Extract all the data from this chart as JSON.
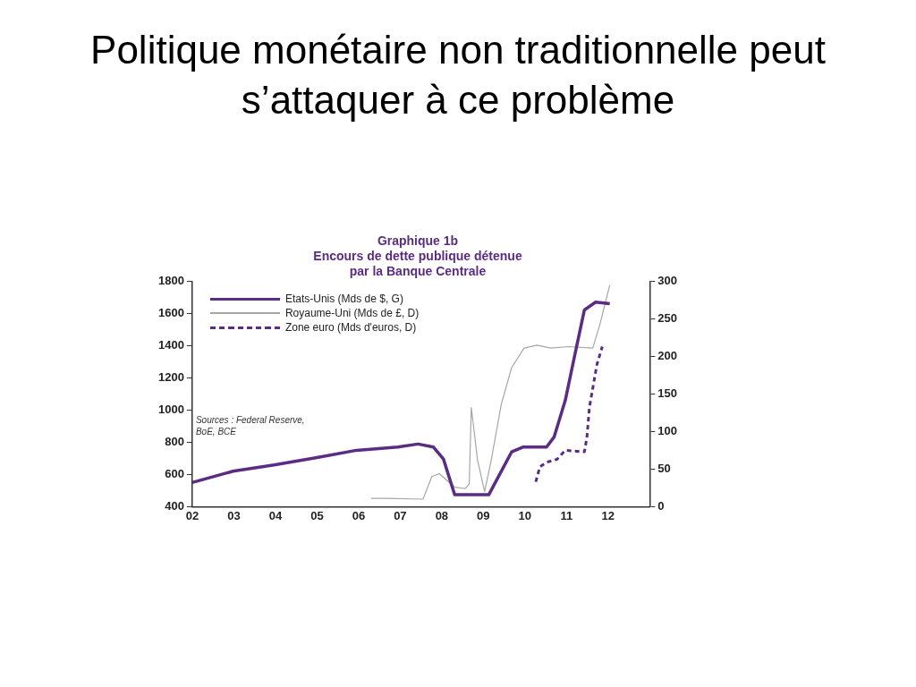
{
  "chart_data": {
    "type": "line",
    "title": "Politique monétaire non traditionnelle peut s’attaquer à ce problème",
    "subtitle": "Graphique 1b\nEncours de dette publique détenue\npar la Banque Centrale",
    "annotations": [
      "Sources : Federal Reserve,\nBoE, BCE"
    ],
    "xlim": [
      2002,
      2013
    ],
    "xticks": [
      {
        "value": 2002,
        "label": "02"
      },
      {
        "value": 2003,
        "label": "03"
      },
      {
        "value": 2004,
        "label": "04"
      },
      {
        "value": 2005,
        "label": "05"
      },
      {
        "value": 2006,
        "label": "06"
      },
      {
        "value": 2007,
        "label": "07"
      },
      {
        "value": 2008,
        "label": "08"
      },
      {
        "value": 2009,
        "label": "09"
      },
      {
        "value": 2010,
        "label": "10"
      },
      {
        "value": 2011,
        "label": "11"
      },
      {
        "value": 2012,
        "label": "12"
      }
    ],
    "ylim": [
      400,
      1800
    ],
    "yticks": [
      400,
      600,
      800,
      1000,
      1200,
      1400,
      1600,
      1800
    ],
    "y2lim": [
      0,
      300
    ],
    "y2ticks": [
      0,
      50,
      100,
      150,
      200,
      250,
      300
    ],
    "grid": false,
    "legend": "top left",
    "marker": "none",
    "series": [
      {
        "name": "Etats-Unis (Mds de $, G)",
        "color": "#5b2c83",
        "line_style": "solid",
        "x": [
          2002,
          2002.98,
          2003.97,
          2004.97,
          2005.95,
          2006.94,
          2007.43,
          2007.8,
          2008.04,
          2008.31,
          2009.13,
          2009.68,
          2009.95,
          2010.52,
          2010.7,
          2010.97,
          2011.22,
          2011.43,
          2011.7,
          2012.04
        ],
        "values": [
          550,
          620,
          659,
          704,
          750,
          770,
          789,
          770,
          696,
          474,
          474,
          740,
          770,
          770,
          832,
          1060,
          1368,
          1622,
          1670,
          1660
        ]
      },
      {
        "name": "Royaume-Uni (Mds de £, D)",
        "color": "#a6a6a6",
        "axis": "y2",
        "line_style": "solid",
        "x": [
          2006.3,
          2006.67,
          2007.55,
          2007.76,
          2007.94,
          2008.31,
          2008.56,
          2008.66,
          2008.71,
          2008.86,
          2009.03,
          2009.19,
          2009.43,
          2009.68,
          2009.98,
          2010.29,
          2010.62,
          2011.04,
          2011.63,
          2011.8,
          2012.04
        ],
        "values": [
          11,
          11,
          10,
          40,
          44,
          26,
          24,
          30,
          132,
          62,
          20,
          62,
          136,
          185,
          211,
          215,
          211,
          213,
          211,
          242,
          295
        ]
      },
      {
        "name": "Zone euro (Mds d'euros, D)",
        "color": "#5b2c83",
        "axis": "y2",
        "line_style": "dashed",
        "x": [
          2010.26,
          2010.36,
          2010.52,
          2010.77,
          2010.97,
          2011.43,
          2011.49,
          2011.55,
          2011.73,
          2011.86
        ],
        "values": [
          33,
          53,
          59,
          63,
          75,
          73,
          92,
          132,
          189,
          213
        ]
      }
    ]
  }
}
